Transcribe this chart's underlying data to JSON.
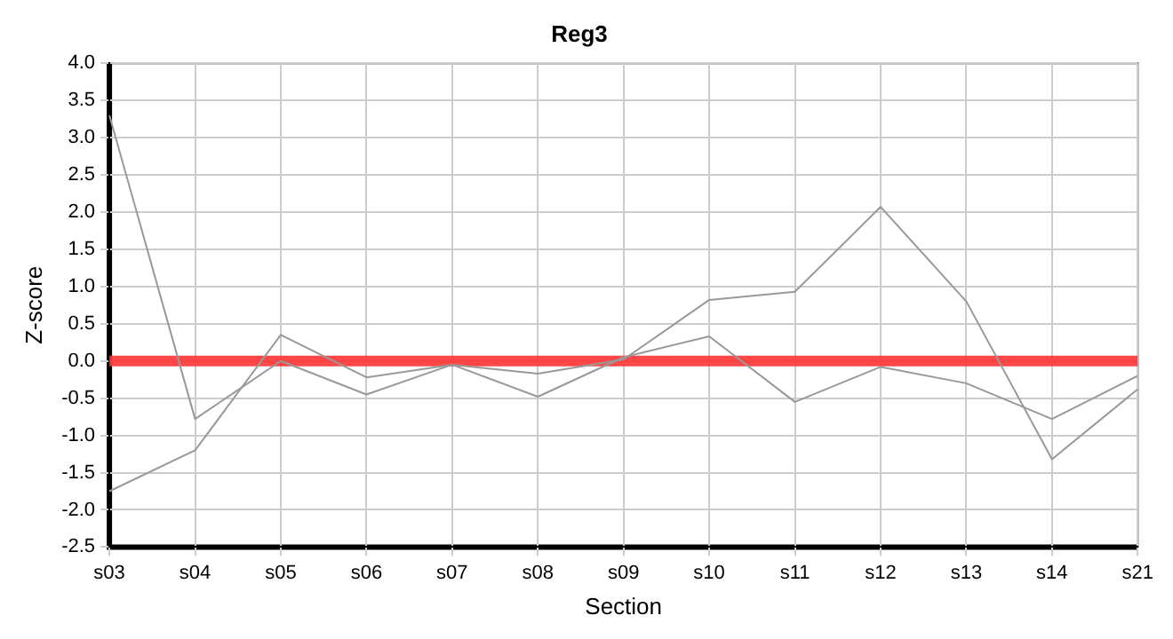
{
  "chart_data": {
    "type": "line",
    "title": "Reg3",
    "xlabel": "Section",
    "ylabel": "Z-score",
    "categories": [
      "s03",
      "s04",
      "s05",
      "s06",
      "s07",
      "s08",
      "s09",
      "s10",
      "s11",
      "s12",
      "s13",
      "s14",
      "s21"
    ],
    "series": [
      {
        "color": "#999999",
        "values": [
          3.3,
          -0.78,
          0.0,
          -0.45,
          -0.05,
          -0.48,
          0.05,
          0.33,
          -0.55,
          -0.08,
          -0.3,
          -0.78,
          -0.2
        ]
      },
      {
        "color": "#999999",
        "values": [
          -1.75,
          -1.2,
          0.35,
          -0.22,
          -0.05,
          -0.17,
          0.02,
          0.82,
          0.93,
          2.07,
          0.8,
          -1.32,
          -0.38
        ]
      }
    ],
    "ylim": [
      -2.5,
      4.0
    ],
    "yticks": [
      {
        "value": -2.5,
        "label": "-2.5"
      },
      {
        "value": -2,
        "label": "-2.0"
      },
      {
        "value": -1.5,
        "label": "-1.5"
      },
      {
        "value": -1,
        "label": "-1.0"
      },
      {
        "value": -0.5,
        "label": "-0.5"
      },
      {
        "value": 0,
        "label": "0.0"
      },
      {
        "value": 0.5,
        "label": "0.5"
      },
      {
        "value": 1,
        "label": "1.0"
      },
      {
        "value": 1.5,
        "label": "1.5"
      },
      {
        "value": 2,
        "label": "2.0"
      },
      {
        "value": 2.5,
        "label": "2.5"
      },
      {
        "value": 3,
        "label": "3.0"
      },
      {
        "value": 3.5,
        "label": "3.5"
      },
      {
        "value": 4,
        "label": "4.0"
      }
    ],
    "ref_lines": [
      {
        "axis": "y",
        "value": 0,
        "color": "#ff3333"
      }
    ],
    "grid": true,
    "legend": false,
    "marker": "none",
    "line_style": "solid"
  }
}
